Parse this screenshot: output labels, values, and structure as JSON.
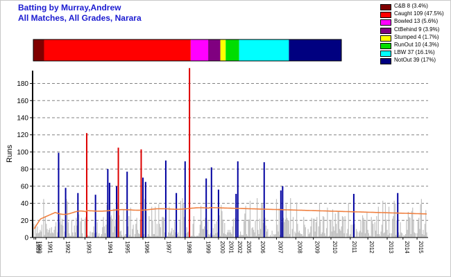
{
  "header": {
    "title": "Batting by Murray,Andrew",
    "subtitle": "All Matches, All Grades, Narara"
  },
  "chart_data": [
    {
      "type": "stacked-bar",
      "title": "",
      "segments": [
        {
          "label": "C&B 8 (3.4%)",
          "name": "C&B",
          "count": 8,
          "percent": 3.4,
          "color": "#800000"
        },
        {
          "label": "Caught 109 (47.5%)",
          "name": "Caught",
          "count": 109,
          "percent": 47.5,
          "color": "#ff0000"
        },
        {
          "label": "Bowled 13 (5.6%)",
          "name": "Bowled",
          "count": 13,
          "percent": 5.6,
          "color": "#ff00ff"
        },
        {
          "label": "CtBehind 9 (3.9%)",
          "name": "CtBehind",
          "count": 9,
          "percent": 3.9,
          "color": "#800080"
        },
        {
          "label": "Stumped 4 (1.7%)",
          "name": "Stumped",
          "count": 4,
          "percent": 1.7,
          "color": "#ffff00"
        },
        {
          "label": "RunOut 10 (4.3%)",
          "name": "RunOut",
          "count": 10,
          "percent": 4.3,
          "color": "#00dd00"
        },
        {
          "label": "LBW 37 (16.1%)",
          "name": "LBW",
          "count": 37,
          "percent": 16.1,
          "color": "#00ffff"
        },
        {
          "label": "NotOut 39 (17%)",
          "name": "NotOut",
          "count": 39,
          "percent": 17.0,
          "color": "#000080"
        }
      ],
      "legend_position": "top-right"
    },
    {
      "type": "bar",
      "title": "",
      "xlabel": "",
      "ylabel": "Runs",
      "ylim": [
        0,
        195
      ],
      "y_ticks": [
        0,
        20,
        40,
        60,
        80,
        100,
        120,
        140,
        160,
        180
      ],
      "grid": "horizontal-dashed",
      "colors": {
        "default": "#c0c0c0",
        "caught": "#dd0000",
        "notout": "#0000a0",
        "average": "#f08040"
      },
      "x_tick_labels": [
        {
          "label": "1989",
          "index": 0
        },
        {
          "label": "1990",
          "index": 2
        },
        {
          "label": "1991",
          "index": 14
        },
        {
          "label": "1992",
          "index": 34
        },
        {
          "label": "1993",
          "index": 58
        },
        {
          "label": "1994",
          "index": 82
        },
        {
          "label": "1995",
          "index": 102
        },
        {
          "label": "1996",
          "index": 124
        },
        {
          "label": "1997",
          "index": 149
        },
        {
          "label": "1998",
          "index": 172
        },
        {
          "label": "1999",
          "index": 194
        },
        {
          "label": "2000",
          "index": 210
        },
        {
          "label": "2001",
          "index": 220
        },
        {
          "label": "2002",
          "index": 230
        },
        {
          "label": "2005",
          "index": 240
        },
        {
          "label": "2006",
          "index": 256
        },
        {
          "label": "2007",
          "index": 276
        },
        {
          "label": "2008",
          "index": 298
        },
        {
          "label": "2009",
          "index": 318
        },
        {
          "label": "2010",
          "index": 338
        },
        {
          "label": "2011",
          "index": 360
        },
        {
          "label": "2012",
          "index": 380
        },
        {
          "label": "2013",
          "index": 402
        },
        {
          "label": "2014",
          "index": 420
        },
        {
          "label": "2015",
          "index": 436
        }
      ],
      "highlight_bars": [
        {
          "index": 28,
          "value": 99,
          "type": "notout"
        },
        {
          "index": 36,
          "value": 58,
          "type": "notout"
        },
        {
          "index": 50,
          "value": 52,
          "type": "notout"
        },
        {
          "index": 60,
          "value": 122,
          "type": "caught"
        },
        {
          "index": 70,
          "value": 50,
          "type": "notout"
        },
        {
          "index": 84,
          "value": 80,
          "type": "notout"
        },
        {
          "index": 86,
          "value": 64,
          "type": "notout"
        },
        {
          "index": 94,
          "value": 60,
          "type": "notout"
        },
        {
          "index": 96,
          "value": 105,
          "type": "caught"
        },
        {
          "index": 106,
          "value": 77,
          "type": "notout"
        },
        {
          "index": 122,
          "value": 103,
          "type": "caught"
        },
        {
          "index": 124,
          "value": 70,
          "type": "notout"
        },
        {
          "index": 127,
          "value": 65,
          "type": "notout"
        },
        {
          "index": 150,
          "value": 90,
          "type": "notout"
        },
        {
          "index": 162,
          "value": 52,
          "type": "notout"
        },
        {
          "index": 172,
          "value": 89,
          "type": "notout"
        },
        {
          "index": 177,
          "value": 198,
          "type": "caught"
        },
        {
          "index": 196,
          "value": 69,
          "type": "notout"
        },
        {
          "index": 202,
          "value": 82,
          "type": "notout"
        },
        {
          "index": 210,
          "value": 56,
          "type": "notout"
        },
        {
          "index": 230,
          "value": 51,
          "type": "notout"
        },
        {
          "index": 232,
          "value": 89,
          "type": "notout"
        },
        {
          "index": 262,
          "value": 88,
          "type": "notout"
        },
        {
          "index": 281,
          "value": 55,
          "type": "notout"
        },
        {
          "index": 283,
          "value": 60,
          "type": "notout"
        },
        {
          "index": 364,
          "value": 51,
          "type": "notout"
        },
        {
          "index": 414,
          "value": 52,
          "type": "notout"
        }
      ]
    }
  ]
}
